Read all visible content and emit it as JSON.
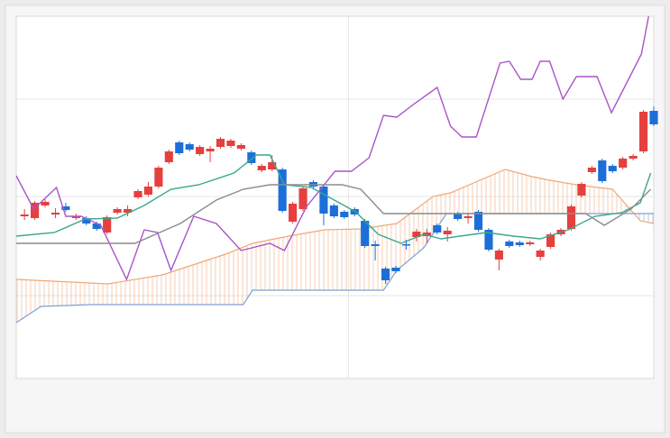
{
  "chart_data": {
    "type": "candlestick",
    "xlim": [
      -0.8,
      61
    ],
    "ylim": [
      0,
      402
    ],
    "grid": true,
    "grid_x": [
      31.4
    ],
    "grid_y": [
      92,
      202,
      310
    ],
    "up_color": "#e5403e",
    "down_color": "#1c6fd8",
    "x": [
      0,
      1,
      2,
      3,
      4,
      5,
      6,
      7,
      8,
      9,
      10,
      11,
      12,
      13,
      14,
      15,
      16,
      17,
      18,
      19,
      20,
      21,
      22,
      23,
      24,
      25,
      26,
      27,
      28,
      29,
      30,
      31,
      32,
      33,
      34,
      35,
      36,
      37,
      38,
      39,
      40,
      41,
      42,
      43,
      44,
      45,
      46,
      47,
      48,
      49,
      50,
      51,
      52,
      53,
      54,
      55,
      56,
      57,
      58,
      59,
      60,
      61
    ],
    "open": [
      180,
      178,
      192,
      182,
      191,
      178,
      178,
      172,
      162,
      184,
      184,
      201,
      204,
      213,
      240,
      262,
      260,
      249,
      252,
      257,
      258,
      255,
      251,
      231,
      232,
      232,
      174,
      188,
      218,
      213,
      192,
      185,
      188,
      175,
      149,
      122,
      123,
      149,
      157,
      158,
      170,
      160,
      183,
      178,
      185,
      165,
      132,
      152,
      151,
      149,
      135,
      146,
      160,
      166,
      203,
      229,
      242,
      236,
      234,
      244,
      252,
      297
    ],
    "high": [
      188,
      197,
      199,
      189,
      195,
      183,
      180,
      174,
      181,
      190,
      192,
      210,
      218,
      236,
      254,
      264,
      262,
      259,
      258,
      268,
      266,
      261,
      253,
      238,
      248,
      234,
      196,
      213,
      220,
      215,
      194,
      187,
      190,
      177,
      153,
      124,
      125,
      154,
      166,
      166,
      172,
      168,
      185,
      184,
      187,
      167,
      144,
      154,
      153,
      153,
      144,
      162,
      167,
      193,
      218,
      236,
      244,
      238,
      246,
      249,
      298,
      302
    ],
    "low": [
      176,
      176,
      190,
      178,
      185,
      176,
      170,
      164,
      160,
      182,
      180,
      199,
      202,
      211,
      238,
      248,
      252,
      247,
      240,
      255,
      256,
      253,
      237,
      229,
      230,
      184,
      172,
      186,
      211,
      170,
      178,
      177,
      180,
      145,
      131,
      105,
      117,
      143,
      152,
      150,
      160,
      152,
      175,
      172,
      163,
      141,
      120,
      145,
      146,
      147,
      131,
      144,
      158,
      164,
      201,
      227,
      217,
      228,
      232,
      242,
      250,
      280
    ],
    "close": [
      182,
      195,
      196,
      184,
      187,
      180,
      172,
      166,
      179,
      188,
      188,
      208,
      213,
      234,
      252,
      250,
      254,
      257,
      255,
      266,
      264,
      259,
      239,
      236,
      240,
      186,
      194,
      211,
      213,
      183,
      180,
      179,
      182,
      147,
      147,
      109,
      119,
      148,
      163,
      162,
      162,
      164,
      177,
      180,
      165,
      143,
      142,
      147,
      148,
      151,
      142,
      160,
      165,
      191,
      216,
      234,
      219,
      230,
      244,
      247,
      296,
      282
    ],
    "lines": [
      {
        "color": "#a855c8",
        "x": [
          -0.8,
          0.9,
          3.1,
          4.0,
          5.5,
          7.4,
          9.9,
          11.6,
          12.9,
          14.2,
          16.4,
          18.6,
          21.0,
          23.8,
          25.2,
          27.3,
          30.1,
          31.7,
          33.4,
          34.8,
          36.1,
          37.8,
          40.0,
          41.3,
          42.4,
          43.8,
          46.1,
          47.0,
          48.1,
          49.2,
          50.0,
          50.9,
          52.2,
          53.5,
          55.5,
          56.9,
          59.8,
          60.5
        ],
        "values": [
          225,
          188,
          212,
          180,
          180,
          170,
          110,
          165,
          162,
          120,
          180,
          172,
          142,
          150,
          142,
          190,
          230,
          230,
          245,
          292,
          290,
          305,
          323,
          280,
          268,
          268,
          350,
          352,
          332,
          332,
          352,
          352,
          310,
          335,
          335,
          295,
          360,
          402
        ]
      },
      {
        "color": "#3aa88c",
        "x": [
          -0.8,
          2.9,
          5.9,
          9.0,
          11.6,
          14.2,
          16.9,
          20.3,
          22.5,
          23.8,
          25.2,
          27.8,
          32.1,
          34.3,
          36.5,
          38.7,
          40.4,
          42.2,
          44.8,
          47.4,
          50.0,
          52.7,
          55.3,
          57.9,
          59.7,
          60.7
        ],
        "values": [
          158,
          162,
          177,
          178,
          192,
          210,
          215,
          228,
          248,
          248,
          215,
          212,
          185,
          160,
          150,
          160,
          155,
          158,
          162,
          158,
          155,
          165,
          180,
          184,
          195,
          228
        ]
      },
      {
        "color": "#8c8c8c",
        "x": [
          -0.8,
          10.7,
          15.1,
          18.6,
          21.2,
          23.8,
          27.8,
          30.8,
          32.6,
          34.8,
          38.7,
          54.4,
          56.2,
          58.8,
          60.7
        ],
        "values": [
          150,
          150,
          172,
          198,
          210,
          215,
          215,
          215,
          210,
          183,
          183,
          183,
          170,
          188,
          210
        ]
      }
    ],
    "span_a": {
      "color": "#f0a878",
      "x": [
        -0.8,
        8.1,
        13.4,
        19.5,
        22.1,
        25.6,
        29.1,
        32.6,
        36.1,
        39.6,
        41.3,
        46.6,
        49.2,
        50.9,
        53.5,
        57.0,
        59.7,
        61.0
      ],
      "values": [
        110,
        105,
        115,
        138,
        150,
        158,
        165,
        166,
        172,
        202,
        206,
        232,
        224,
        220,
        215,
        210,
        175,
        172
      ]
    },
    "span_b": {
      "color": "#7f9fd6",
      "x": [
        -0.8,
        1.6,
        6.4,
        21.2,
        22.1,
        34.8,
        36.1,
        38.7,
        40.9,
        58.8,
        61.0
      ],
      "values": [
        62,
        80,
        82,
        82,
        98,
        98,
        120,
        145,
        183,
        183,
        183
      ]
    }
  }
}
